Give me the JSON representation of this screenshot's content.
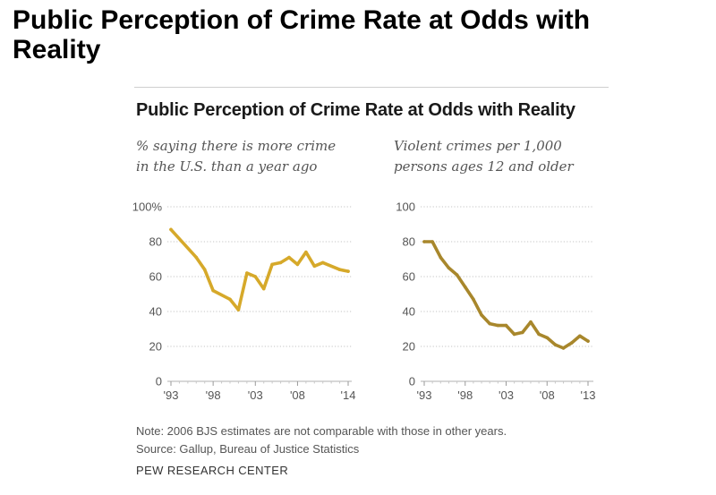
{
  "page_title": "Public Perception of Crime Rate at Odds with Reality",
  "colors": {
    "left_line": "#d6a92a",
    "right_line": "#a8872c",
    "grid": "#c4c4c4",
    "rule": "#cfcfcf"
  },
  "chart_data": [
    {
      "type": "line",
      "title": "Public Perception of Crime Rate at Odds with Reality",
      "subtitle_lines": [
        "% saying there is more crime",
        "in the U.S. than a year ago"
      ],
      "xlabel": "",
      "ylabel": "",
      "ylim": [
        0,
        100
      ],
      "xlim": [
        1993,
        2014
      ],
      "grid": true,
      "y_ticks": [
        0,
        20,
        40,
        60,
        80,
        100
      ],
      "y_tick_labels": [
        "0",
        "20",
        "40",
        "60",
        "80",
        "100%"
      ],
      "x_ticks": [
        1993,
        1998,
        2003,
        2008,
        2014
      ],
      "x_tick_labels": [
        "'93",
        "'98",
        "'03",
        "'08",
        "'14"
      ],
      "series": [
        {
          "name": "% saying more crime",
          "x": [
            1993,
            1996,
            1997,
            1998,
            2000,
            2001,
            2002,
            2003,
            2004,
            2005,
            2006,
            2007,
            2008,
            2009,
            2010,
            2011,
            2013,
            2014
          ],
          "values": [
            87,
            71,
            64,
            52,
            47,
            41,
            62,
            60,
            53,
            67,
            68,
            71,
            67,
            74,
            66,
            68,
            64,
            63
          ]
        }
      ]
    },
    {
      "type": "line",
      "subtitle_lines": [
        "Violent crimes per 1,000",
        "persons ages 12 and older"
      ],
      "xlabel": "",
      "ylabel": "",
      "ylim": [
        0,
        100
      ],
      "xlim": [
        1993,
        2013
      ],
      "grid": true,
      "y_ticks": [
        0,
        20,
        40,
        60,
        80,
        100
      ],
      "y_tick_labels": [
        "0",
        "20",
        "40",
        "60",
        "80",
        "100"
      ],
      "x_ticks": [
        1993,
        1998,
        2003,
        2008,
        2013
      ],
      "x_tick_labels": [
        "'93",
        "'98",
        "'03",
        "'08",
        "'13"
      ],
      "series": [
        {
          "name": "Violent crimes per 1,000",
          "x": [
            1993,
            1994,
            1995,
            1996,
            1997,
            1998,
            1999,
            2000,
            2001,
            2002,
            2003,
            2004,
            2005,
            2006,
            2007,
            2008,
            2009,
            2010,
            2011,
            2012,
            2013
          ],
          "values": [
            80,
            80,
            71,
            65,
            61,
            54,
            47,
            38,
            33,
            32,
            32,
            27,
            28,
            34,
            27,
            25,
            21,
            19,
            22,
            26,
            23
          ]
        }
      ]
    }
  ],
  "note": "Note: 2006 BJS estimates are not comparable with those in other years.",
  "source": "Source: Gallup, Bureau of Justice Statistics",
  "organization": "PEW RESEARCH CENTER"
}
